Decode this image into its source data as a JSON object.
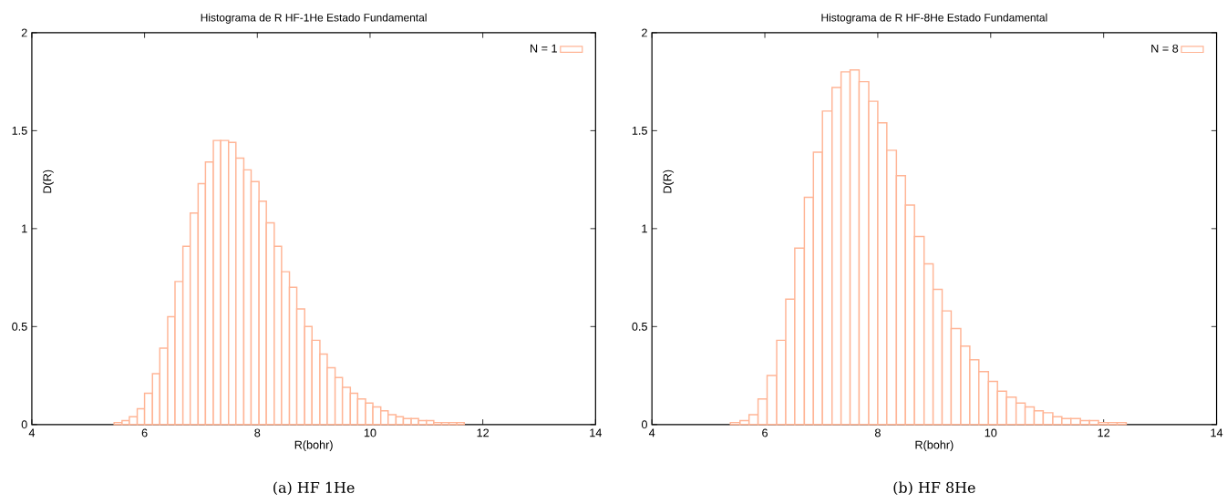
{
  "chart_data": [
    {
      "type": "histogram",
      "title": "Histograma de R HF-1He Estado Fundamental",
      "xlabel": "R(bohr)",
      "ylabel": "D(R)",
      "annotations": [
        "(a) HF 1He"
      ],
      "bins": [
        5.46,
        5.6,
        5.73,
        5.87,
        6,
        6.14,
        6.27,
        6.41,
        6.54,
        6.68,
        6.81,
        6.95,
        7.08,
        7.22,
        7.35,
        7.49,
        7.62,
        7.76,
        7.89,
        8.03,
        8.16,
        8.3,
        8.43,
        8.57,
        8.7,
        8.84,
        8.97,
        9.11,
        9.24,
        9.38,
        9.51,
        9.65,
        9.78,
        9.92,
        10.05,
        10.19,
        10.32,
        10.46,
        10.59,
        10.73,
        10.86,
        11,
        11.13,
        11.27,
        11.4,
        11.54,
        11.67
      ],
      "series": [
        {
          "name": "N = 1",
          "color": "#ffb596",
          "values": [
            0.01,
            0.02,
            0.04,
            0.08,
            0.16,
            0.26,
            0.39,
            0.55,
            0.73,
            0.91,
            1.08,
            1.23,
            1.34,
            1.45,
            1.45,
            1.44,
            1.36,
            1.3,
            1.24,
            1.14,
            1.03,
            0.91,
            0.78,
            0.7,
            0.59,
            0.5,
            0.43,
            0.36,
            0.29,
            0.24,
            0.19,
            0.16,
            0.13,
            0.11,
            0.09,
            0.07,
            0.05,
            0.04,
            0.03,
            0.03,
            0.02,
            0.02,
            0.01,
            0.01,
            0.01,
            0.01
          ]
        }
      ],
      "xlim": [
        4,
        14
      ],
      "ylim": [
        0,
        2
      ],
      "xticks": [
        4,
        6,
        8,
        10,
        12,
        14
      ],
      "yticks": [
        0,
        0.5,
        1,
        1.5,
        2
      ],
      "legend": "top right"
    },
    {
      "type": "histogram",
      "title": "Histograma de R HF-8He Estado Fundamental",
      "xlabel": "R(bohr)",
      "ylabel": "D(R)",
      "annotations": [
        "(b) HF 8He"
      ],
      "bins": [
        5.39,
        5.56,
        5.72,
        5.88,
        6.04,
        6.21,
        6.37,
        6.53,
        6.7,
        6.86,
        7.02,
        7.19,
        7.35,
        7.51,
        7.67,
        7.84,
        8,
        8.16,
        8.33,
        8.49,
        8.65,
        8.82,
        8.98,
        9.14,
        9.3,
        9.47,
        9.63,
        9.79,
        9.96,
        10.12,
        10.28,
        10.45,
        10.61,
        10.77,
        10.93,
        11.1,
        11.26,
        11.42,
        11.59,
        11.75,
        11.91,
        12.08,
        12.24,
        12.4
      ],
      "series": [
        {
          "name": "N = 8",
          "color": "#ffb596",
          "values": [
            0.01,
            0.02,
            0.05,
            0.13,
            0.25,
            0.43,
            0.64,
            0.9,
            1.16,
            1.39,
            1.6,
            1.72,
            1.8,
            1.81,
            1.75,
            1.65,
            1.54,
            1.4,
            1.27,
            1.12,
            0.96,
            0.82,
            0.69,
            0.58,
            0.49,
            0.4,
            0.33,
            0.27,
            0.22,
            0.17,
            0.14,
            0.11,
            0.09,
            0.07,
            0.06,
            0.04,
            0.03,
            0.03,
            0.02,
            0.02,
            0.01,
            0.01,
            0.01
          ]
        }
      ],
      "xlim": [
        4,
        14
      ],
      "ylim": [
        0,
        2
      ],
      "xticks": [
        4,
        6,
        8,
        10,
        12,
        14
      ],
      "yticks": [
        0,
        0.5,
        1,
        1.5,
        2
      ],
      "legend": "top right"
    }
  ]
}
